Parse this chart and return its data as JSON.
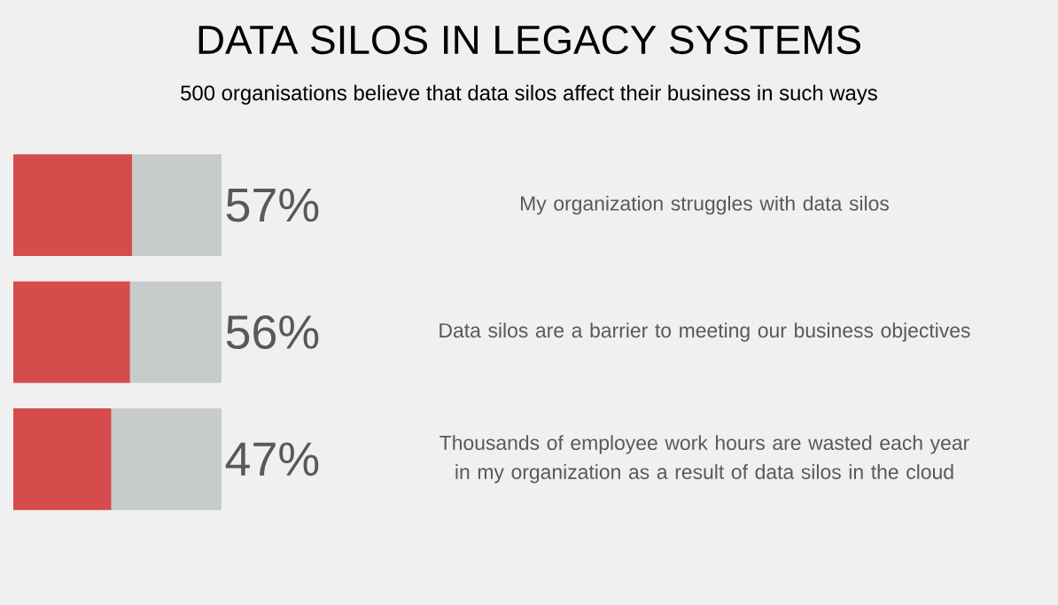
{
  "chart_data": {
    "type": "bar",
    "orientation": "horizontal",
    "title": "DATA SILOS IN LEGACY SYSTEMS",
    "subtitle": "500 organisations believe that data silos affect their business in such ways",
    "categories": [
      "My organization struggles with data silos",
      "Data silos are a barrier to meeting our business objectives",
      "Thousands of employee work hours are wasted each year in my organization as a result of data silos in the cloud"
    ],
    "values": [
      57,
      56,
      47
    ],
    "value_labels": [
      "57%",
      "56%",
      "47%"
    ],
    "color": "#d64c4c",
    "xlim": [
      0,
      100
    ],
    "tick_labels": "y"
  }
}
